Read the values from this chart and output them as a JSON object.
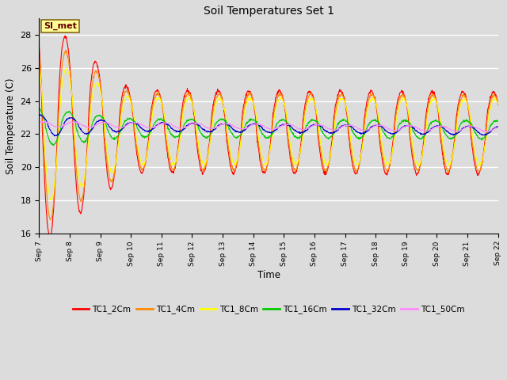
{
  "title": "Soil Temperatures Set 1",
  "xlabel": "Time",
  "ylabel": "Soil Temperature (C)",
  "ylim": [
    16,
    29
  ],
  "yticks": [
    16,
    18,
    20,
    22,
    24,
    26,
    28
  ],
  "xlim_days": [
    0,
    15
  ],
  "bg_color": "#dcdcdc",
  "fig_bg_color": "#dcdcdc",
  "annotation_text": "SI_met",
  "annotation_bg": "#ffff99",
  "annotation_border": "#8b6914",
  "series_colors": {
    "TC1_2Cm": "#ff0000",
    "TC1_4Cm": "#ff8800",
    "TC1_8Cm": "#ffff00",
    "TC1_16Cm": "#00cc00",
    "TC1_32Cm": "#0000cd",
    "TC1_50Cm": "#ff88ff"
  },
  "x_tick_labels": [
    "Sep 7",
    "Sep 8",
    "Sep 9",
    "Sep 10",
    "Sep 11",
    "Sep 12",
    "Sep 13",
    "Sep 14",
    "Sep 15",
    "Sep 16",
    "Sep 17",
    "Sep 18",
    "Sep 19",
    "Sep 20",
    "Sep 21",
    "Sep 22"
  ],
  "num_points": 1441,
  "figsize": [
    6.4,
    4.8
  ],
  "dpi": 100
}
